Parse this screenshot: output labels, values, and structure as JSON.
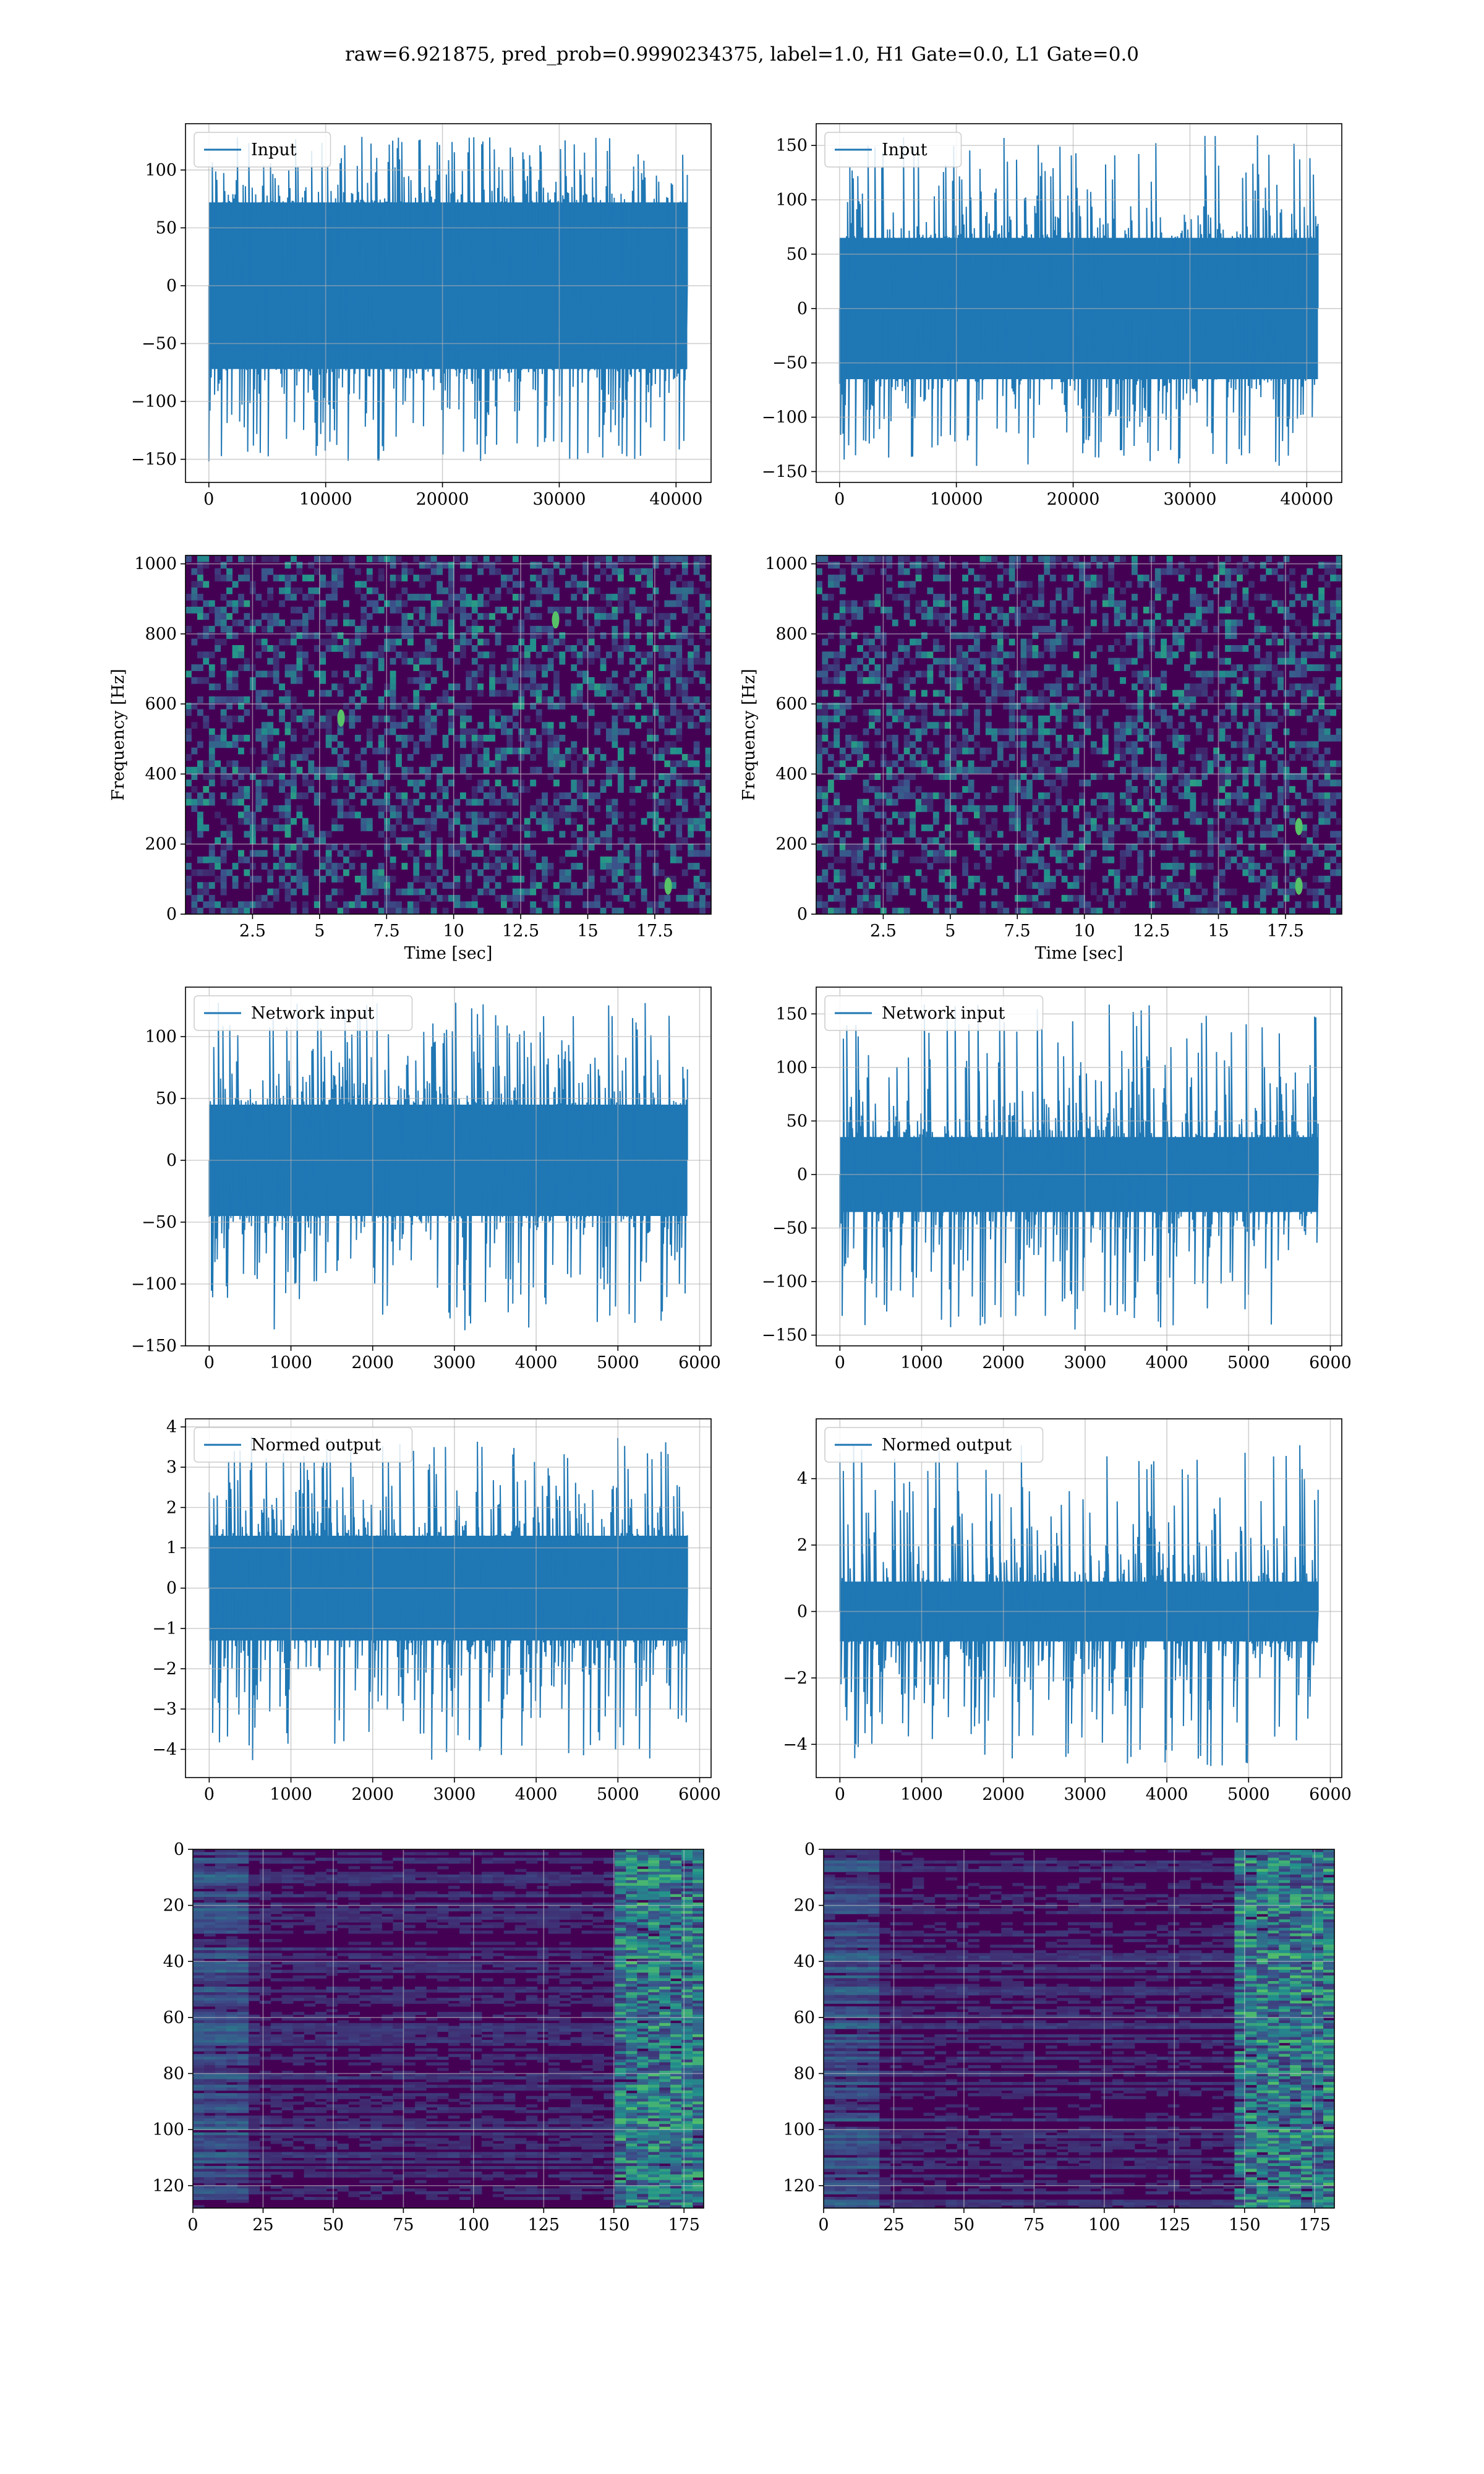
{
  "figure": {
    "suptitle": "raw=6.921875, pred_prob=0.9990234375, label=1.0, H1 Gate=0.0, L1 Gate=0.0",
    "line_color": "#1f77b4",
    "grid_color": "#b0b0b0",
    "viridis_low": "#440154",
    "viridis_high": "#fde725"
  },
  "chart_data": [
    {
      "type": "line",
      "legend": "Input",
      "legend_position": "top-left",
      "grid": true,
      "xlim": [
        -2000,
        43000
      ],
      "ylim": [
        -170,
        140
      ],
      "xticks": [
        0,
        10000,
        20000,
        30000,
        40000
      ],
      "yticks": [
        -150,
        -100,
        -50,
        0,
        50,
        100
      ],
      "series": [
        {
          "name": "Input",
          "x_range": [
            0,
            40960
          ],
          "band": [
            -72,
            72
          ],
          "spike_max": 130,
          "spike_min": -155
        }
      ]
    },
    {
      "type": "line",
      "legend": "Input",
      "legend_position": "top-left",
      "grid": true,
      "xlim": [
        -2000,
        43000
      ],
      "ylim": [
        -160,
        170
      ],
      "xticks": [
        0,
        10000,
        20000,
        30000,
        40000
      ],
      "yticks": [
        -150,
        -100,
        -50,
        0,
        50,
        100,
        150
      ],
      "series": [
        {
          "name": "Input",
          "x_range": [
            0,
            40960
          ],
          "band": [
            -65,
            65
          ],
          "spike_max": 160,
          "spike_min": -145
        }
      ]
    },
    {
      "type": "heatmap",
      "grid": true,
      "xlabel": "Time [sec]",
      "ylabel": "Frequency [Hz]",
      "xlim": [
        0,
        19.6
      ],
      "ylim": [
        0,
        1024
      ],
      "xticks": [
        2.5,
        5.0,
        7.5,
        10.0,
        12.5,
        15.0,
        17.5
      ],
      "yticks": [
        0,
        200,
        400,
        600,
        800,
        1000
      ],
      "hotspots": [
        {
          "t": 18.0,
          "f": 80
        },
        {
          "t": 13.8,
          "f": 840
        },
        {
          "t": 5.8,
          "f": 560
        }
      ]
    },
    {
      "type": "heatmap",
      "grid": true,
      "xlabel": "Time [sec]",
      "ylabel": "Frequency [Hz]",
      "xlim": [
        0,
        19.6
      ],
      "ylim": [
        0,
        1024
      ],
      "xticks": [
        2.5,
        5.0,
        7.5,
        10.0,
        12.5,
        15.0,
        17.5
      ],
      "yticks": [
        0,
        200,
        400,
        600,
        800,
        1000
      ],
      "hotspots": [
        {
          "t": 18.0,
          "f": 80
        },
        {
          "t": 18.0,
          "f": 250
        }
      ]
    },
    {
      "type": "line",
      "legend": "Network input",
      "legend_position": "top-left",
      "grid": true,
      "xlim": [
        -290,
        6140
      ],
      "ylim": [
        -150,
        140
      ],
      "xticks": [
        0,
        1000,
        2000,
        3000,
        4000,
        5000,
        6000
      ],
      "yticks": [
        -150,
        -100,
        -50,
        0,
        50,
        100
      ],
      "series": [
        {
          "name": "Network input",
          "x_range": [
            0,
            5850
          ],
          "band": [
            -45,
            45
          ],
          "spike_max": 128,
          "spike_min": -138
        }
      ]
    },
    {
      "type": "line",
      "legend": "Network input",
      "legend_position": "top-left",
      "grid": true,
      "xlim": [
        -290,
        6140
      ],
      "ylim": [
        -160,
        175
      ],
      "xticks": [
        0,
        1000,
        2000,
        3000,
        4000,
        5000,
        6000
      ],
      "yticks": [
        -150,
        -100,
        -50,
        0,
        50,
        100,
        150
      ],
      "series": [
        {
          "name": "Network input",
          "x_range": [
            0,
            5850
          ],
          "band": [
            -35,
            35
          ],
          "spike_max": 160,
          "spike_min": -145
        }
      ]
    },
    {
      "type": "line",
      "legend": "Normed output",
      "legend_position": "top-left",
      "grid": true,
      "xlim": [
        -290,
        6140
      ],
      "ylim": [
        -4.7,
        4.2
      ],
      "xticks": [
        0,
        1000,
        2000,
        3000,
        4000,
        5000,
        6000
      ],
      "yticks": [
        -4,
        -3,
        -2,
        -1,
        0,
        1,
        2,
        3,
        4
      ],
      "series": [
        {
          "name": "Normed output",
          "x_range": [
            0,
            5850
          ],
          "band": [
            -1.3,
            1.3
          ],
          "spike_max": 3.8,
          "spike_min": -4.3
        }
      ]
    },
    {
      "type": "line",
      "legend": "Normed output",
      "legend_position": "top-left",
      "grid": true,
      "xlim": [
        -290,
        6140
      ],
      "ylim": [
        -5.0,
        5.8
      ],
      "xticks": [
        0,
        1000,
        2000,
        3000,
        4000,
        5000,
        6000
      ],
      "yticks": [
        -4,
        -2,
        0,
        2,
        4
      ],
      "series": [
        {
          "name": "Normed output",
          "x_range": [
            0,
            5850
          ],
          "band": [
            -0.9,
            0.9
          ],
          "spike_max": 5.1,
          "spike_min": -4.7
        }
      ]
    },
    {
      "type": "heatmap",
      "grid": true,
      "xlim": [
        0,
        182
      ],
      "ylim": [
        128,
        0
      ],
      "xticks": [
        0,
        25,
        50,
        75,
        100,
        125,
        150,
        175
      ],
      "yticks": [
        0,
        20,
        40,
        60,
        80,
        100,
        120
      ],
      "feature_band_x": [
        150,
        182
      ]
    },
    {
      "type": "heatmap",
      "grid": true,
      "xlim": [
        0,
        182
      ],
      "ylim": [
        128,
        0
      ],
      "xticks": [
        0,
        25,
        50,
        75,
        100,
        125,
        150,
        175
      ],
      "yticks": [
        0,
        20,
        40,
        60,
        80,
        100,
        120
      ],
      "feature_band_x": [
        145,
        182
      ]
    }
  ]
}
